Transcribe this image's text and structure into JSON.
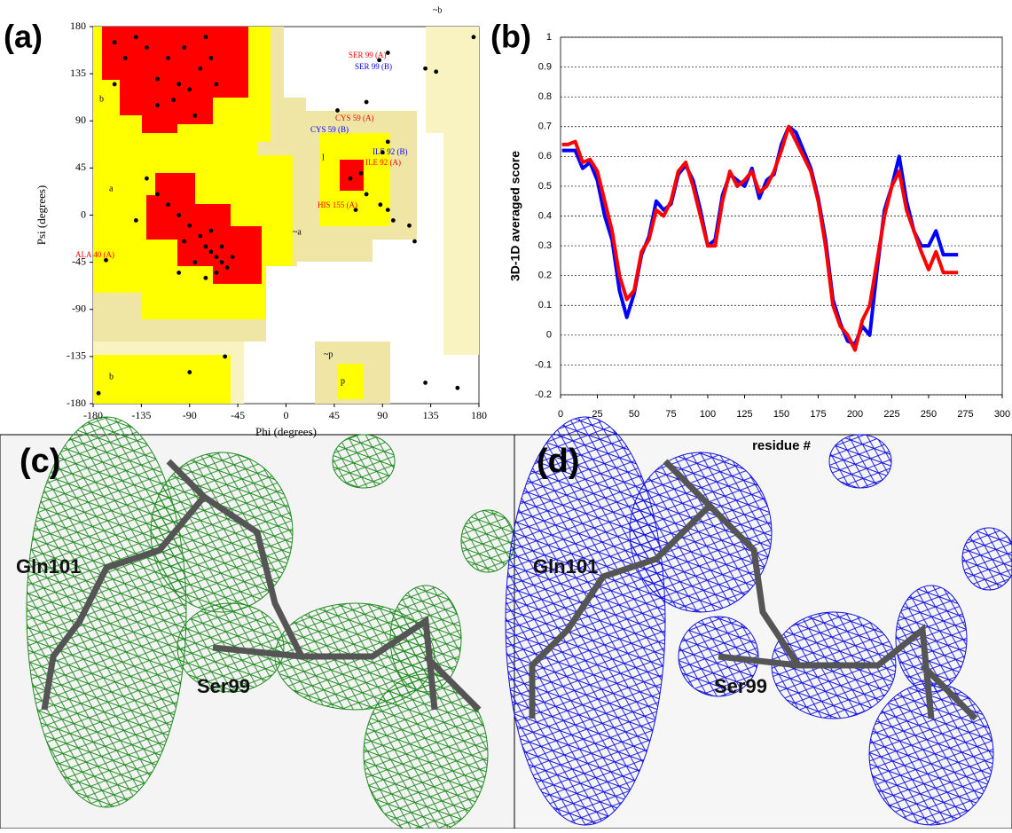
{
  "chart_data": [
    {
      "type": "scatter",
      "panel_label": "(a)",
      "xlabel": "Phi (degrees)",
      "ylabel": "Psi (degrees)",
      "xlim": [
        -180,
        180
      ],
      "ylim": [
        -180,
        180
      ],
      "xticks": [
        -180,
        -135,
        -90,
        -45,
        0,
        45,
        90,
        135,
        180
      ],
      "yticks": [
        -180,
        -135,
        -90,
        -45,
        0,
        45,
        90,
        135,
        180
      ],
      "color": "#000000",
      "x": [
        -120,
        -100,
        -90,
        -110,
        -130,
        -80,
        -140,
        -150,
        -95,
        -70,
        -105,
        -85,
        -120,
        -65,
        -160,
        -75,
        -65,
        -60,
        -70,
        -55,
        -75,
        -80,
        -90,
        -100,
        -110,
        -120,
        -60,
        -50,
        -65,
        -85,
        -95,
        -130,
        -140,
        -100,
        -75,
        -70,
        60,
        70,
        65,
        75,
        88,
        95,
        100,
        87,
        95,
        130,
        140,
        48,
        75,
        95,
        90,
        -168,
        115,
        120,
        -175,
        -90,
        -57,
        130,
        160,
        175,
        -160
      ],
      "y": [
        130,
        125,
        120,
        150,
        160,
        140,
        170,
        150,
        160,
        150,
        110,
        95,
        105,
        125,
        165,
        170,
        -40,
        -45,
        -35,
        -50,
        -30,
        -20,
        -10,
        0,
        10,
        20,
        -30,
        -40,
        -55,
        -45,
        -25,
        35,
        -5,
        -55,
        -60,
        -15,
        35,
        40,
        5,
        20,
        10,
        5,
        -5,
        148,
        155,
        140,
        137,
        100,
        108,
        70,
        60,
        -43,
        -10,
        -25,
        -170,
        -150,
        -135,
        -160,
        -165,
        170,
        125
      ],
      "annotations": [
        {
          "text": "SER 99 (A)",
          "color": "#ff0000"
        },
        {
          "text": "SER 99 (B)",
          "color": "#0000ff"
        },
        {
          "text": "CYS 59 (A)",
          "color": "#ff0000"
        },
        {
          "text": "CYS 59 (B)",
          "color": "#0000ff"
        },
        {
          "text": "ILE 92 (B)",
          "color": "#0000ff"
        },
        {
          "text": "ILE 92 (A)",
          "color": "#ff0000"
        },
        {
          "text": "HIS 155 (A)",
          "color": "#ff0000"
        },
        {
          "text": "ALA 40 (A)",
          "color": "#ff0000"
        }
      ],
      "region_labels": [
        "b",
        "a",
        "l",
        "p",
        "b",
        "~b",
        "~a",
        "~p"
      ]
    },
    {
      "type": "line",
      "panel_label": "(b)",
      "xlabel": "residue #",
      "ylabel": "3D-1D averaged score",
      "xlim": [
        0,
        300
      ],
      "ylim": [
        -0.2,
        1
      ],
      "xticks": [
        0,
        25,
        50,
        75,
        100,
        125,
        150,
        175,
        200,
        225,
        250,
        275,
        300
      ],
      "yticks": [
        -0.2,
        -0.1,
        0,
        0.1,
        0.2,
        0.3,
        0.4,
        0.5,
        0.6,
        0.7,
        0.8,
        0.9,
        1
      ],
      "grid": true,
      "x": [
        1,
        5,
        10,
        15,
        20,
        25,
        30,
        35,
        40,
        45,
        50,
        55,
        60,
        65,
        70,
        75,
        80,
        85,
        90,
        95,
        100,
        105,
        110,
        115,
        120,
        125,
        130,
        135,
        140,
        145,
        150,
        155,
        160,
        165,
        170,
        175,
        180,
        185,
        190,
        195,
        200,
        205,
        210,
        215,
        220,
        225,
        230,
        235,
        240,
        245,
        250,
        255,
        260,
        265,
        270
      ],
      "series": [
        {
          "color": "#0000ff",
          "values": [
            0.62,
            0.62,
            0.62,
            0.56,
            0.58,
            0.52,
            0.4,
            0.32,
            0.15,
            0.06,
            0.14,
            0.27,
            0.33,
            0.45,
            0.42,
            0.44,
            0.54,
            0.57,
            0.52,
            0.42,
            0.3,
            0.32,
            0.47,
            0.54,
            0.52,
            0.5,
            0.56,
            0.46,
            0.52,
            0.54,
            0.64,
            0.7,
            0.68,
            0.62,
            0.56,
            0.46,
            0.32,
            0.12,
            0.04,
            -0.02,
            -0.03,
            0.03,
            0.0,
            0.22,
            0.42,
            0.5,
            0.6,
            0.45,
            0.35,
            0.3,
            0.3,
            0.35,
            0.27,
            0.27,
            0.27
          ]
        },
        {
          "color": "#ff0000",
          "values": [
            0.64,
            0.64,
            0.65,
            0.58,
            0.59,
            0.55,
            0.45,
            0.35,
            0.2,
            0.12,
            0.15,
            0.28,
            0.32,
            0.42,
            0.4,
            0.45,
            0.55,
            0.58,
            0.5,
            0.4,
            0.3,
            0.3,
            0.45,
            0.55,
            0.5,
            0.52,
            0.55,
            0.48,
            0.5,
            0.55,
            0.62,
            0.7,
            0.65,
            0.6,
            0.55,
            0.45,
            0.3,
            0.1,
            0.03,
            0.0,
            -0.05,
            0.05,
            0.1,
            0.25,
            0.4,
            0.5,
            0.55,
            0.42,
            0.35,
            0.28,
            0.22,
            0.28,
            0.21,
            0.21,
            0.21
          ]
        }
      ]
    }
  ],
  "images": [
    {
      "label": "(c)",
      "annotations": [
        "Gln101",
        "Ser99"
      ]
    },
    {
      "label": "(d)",
      "annotations": [
        "Gln101",
        "Ser99"
      ]
    }
  ]
}
